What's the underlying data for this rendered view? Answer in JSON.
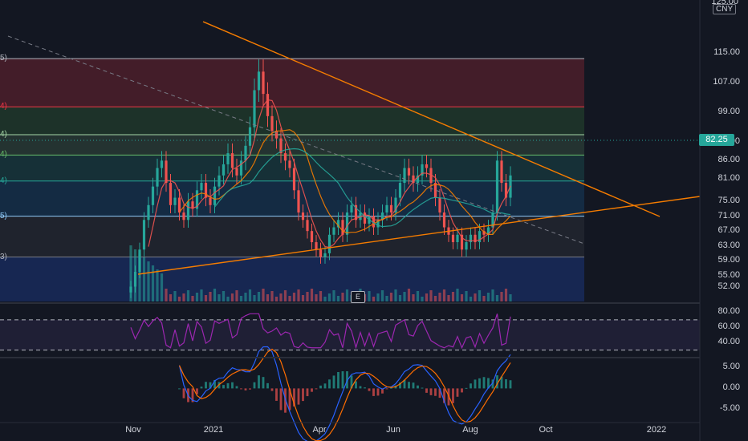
{
  "currency": "CNY",
  "last_price": "82.25",
  "top_clip_label": "125.00",
  "price_axis": [
    "115.00",
    "107.00",
    "99.00",
    "91.00",
    "86.00",
    "81.00",
    "75.00",
    "71.00",
    "67.00",
    "63.00",
    "59.00",
    "55.00",
    "52.00"
  ],
  "rsi_axis": [
    "80.00",
    "60.00",
    "40.00"
  ],
  "macd_axis": [
    "5.00",
    "0.00",
    "-5.00"
  ],
  "time_axis": [
    "Nov",
    "2021",
    "Apr",
    "Jun",
    "Aug",
    "Oct",
    "2022"
  ],
  "fib_labels": [
    {
      "text": "5)",
      "color": "#b2b5be"
    },
    {
      "text": "4)",
      "color": "#f23645"
    },
    {
      "text": "4)",
      "color": "#a5d6a7"
    },
    {
      "text": "4)",
      "color": "#66bb6a"
    },
    {
      "text": "4)",
      "color": "#26a69a"
    },
    {
      "text": "5)",
      "color": "#90caf9"
    },
    {
      "text": "3)",
      "color": "#b2b5be"
    }
  ],
  "earnings_marker": "E",
  "colors": {
    "background": "#131722",
    "up": "#26a69a",
    "down": "#ef5350",
    "trendline": "#f57c00",
    "rsi": "#9c27b0",
    "macd": "#2962ff",
    "signal": "#ff6d00"
  },
  "chart_data": {
    "type": "candlestick",
    "price_ylim": [
      48,
      125
    ],
    "rsi_ylim": [
      20,
      90
    ],
    "macd_ylim": [
      -8,
      7
    ],
    "fib_levels": [
      113.5,
      100.5,
      93.0,
      87.5,
      80.5,
      71.0,
      60.0
    ],
    "trendlines": [
      {
        "name": "descending",
        "from": {
          "x": "Dec 2020",
          "y": 120
        },
        "to": {
          "x": "Nov 2021",
          "y": 65.5
        }
      },
      {
        "name": "ascending",
        "from": {
          "x": "Nov 2020",
          "y": 54
        },
        "to": {
          "x": "Jan 2022",
          "y": 69
        }
      }
    ],
    "closes": [
      52,
      56,
      62,
      70,
      74,
      79,
      84,
      86,
      80,
      74,
      76,
      72,
      70,
      75,
      73,
      78,
      80,
      76,
      74,
      79,
      82,
      85,
      88,
      84,
      82,
      86,
      90,
      95,
      105,
      110,
      104,
      98,
      94,
      92,
      88,
      86,
      84,
      78,
      72,
      70,
      67,
      64,
      62,
      60,
      61,
      66,
      68,
      70,
      66,
      72,
      74,
      70,
      72,
      69,
      71,
      68,
      70,
      72,
      74,
      72,
      76,
      80,
      84,
      82,
      80,
      82,
      85,
      84,
      80,
      76,
      72,
      68,
      66,
      64,
      66,
      62,
      64,
      66,
      64,
      67,
      66,
      68,
      72,
      86,
      80,
      76,
      82
    ]
  }
}
